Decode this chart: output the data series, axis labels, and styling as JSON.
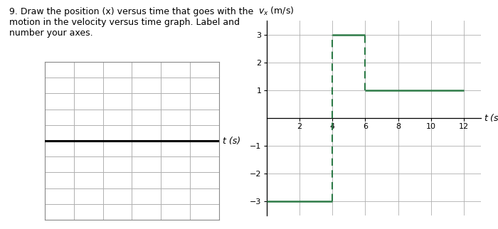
{
  "text_question": "9. Draw the position (x) versus time that goes with the\nmotion in the velocity versus time graph. Label and\nnumber your axes.",
  "left_chart": {
    "xlabel": "t (s)",
    "grid_color": "#b0b0b0",
    "axis_color": "#000000",
    "spine_color": "#888888",
    "bg_color": "#ffffff",
    "n_cols": 6,
    "n_rows": 10,
    "axis_row": 5
  },
  "right_chart": {
    "ylabel": "v",
    "ylabel_sub": "x",
    "ylabel_unit": " (m/s)",
    "xlabel": "t (s)",
    "xlim": [
      0,
      13
    ],
    "ylim": [
      -3.5,
      3.5
    ],
    "xticks": [
      2,
      4,
      6,
      8,
      10,
      12
    ],
    "yticks": [
      -3,
      -2,
      -1,
      1,
      2,
      3
    ],
    "grid_color": "#b0b0b0",
    "line_color": "#2d7a47",
    "dashed_color": "#2d7a47",
    "bg_color": "#ffffff",
    "segments": [
      {
        "t_start": 0,
        "t_end": 4,
        "v": -3
      },
      {
        "t_start": 4,
        "t_end": 6,
        "v": 3
      },
      {
        "t_start": 6,
        "t_end": 12,
        "v": 1
      }
    ],
    "verticals": [
      4,
      6
    ]
  },
  "bg_color": "#ffffff",
  "font_size_question": 9,
  "font_size_tick": 8,
  "font_size_label": 9
}
